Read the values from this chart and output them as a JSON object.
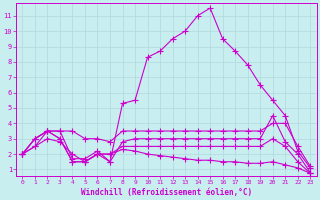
{
  "title": "",
  "xlabel": "Windchill (Refroidissement éolien,°C)",
  "ylabel": "",
  "background_color": "#c8eef0",
  "grid_color": "#b0d8dc",
  "line_color": "#cc00cc",
  "xlim": [
    -0.5,
    23.5
  ],
  "ylim": [
    0.6,
    11.8
  ],
  "xticks": [
    0,
    1,
    2,
    3,
    4,
    5,
    6,
    7,
    8,
    9,
    10,
    11,
    12,
    13,
    14,
    15,
    16,
    17,
    18,
    19,
    20,
    21,
    22,
    23
  ],
  "yticks": [
    1,
    2,
    3,
    4,
    5,
    6,
    7,
    8,
    9,
    10,
    11
  ],
  "lines": [
    [
      2.0,
      3.0,
      3.5,
      3.5,
      1.7,
      1.7,
      2.2,
      1.5,
      5.3,
      5.5,
      8.3,
      8.7,
      9.5,
      10.0,
      11.0,
      11.5,
      9.5,
      8.7,
      7.8,
      6.5,
      5.5,
      4.5,
      2.2,
      1.1
    ],
    [
      2.0,
      3.0,
      3.5,
      3.5,
      3.5,
      3.0,
      3.0,
      2.8,
      3.5,
      3.5,
      3.5,
      3.5,
      3.5,
      3.5,
      3.5,
      3.5,
      3.5,
      3.5,
      3.5,
      3.5,
      4.0,
      4.0,
      2.5,
      1.2
    ],
    [
      2.0,
      3.0,
      3.5,
      3.0,
      1.5,
      1.5,
      2.0,
      1.5,
      2.8,
      3.0,
      3.0,
      3.0,
      3.0,
      3.0,
      3.0,
      3.0,
      3.0,
      3.0,
      3.0,
      3.0,
      4.5,
      2.8,
      2.0,
      0.8
    ],
    [
      2.0,
      2.5,
      3.5,
      3.0,
      1.5,
      1.5,
      2.0,
      2.0,
      2.5,
      2.5,
      2.5,
      2.5,
      2.5,
      2.5,
      2.5,
      2.5,
      2.5,
      2.5,
      2.5,
      2.5,
      3.0,
      2.5,
      1.5,
      0.75
    ],
    [
      2.0,
      2.5,
      3.0,
      2.8,
      2.0,
      1.5,
      2.0,
      2.0,
      2.3,
      2.2,
      2.0,
      1.9,
      1.8,
      1.7,
      1.6,
      1.6,
      1.5,
      1.5,
      1.4,
      1.4,
      1.5,
      1.3,
      1.1,
      0.75
    ]
  ]
}
